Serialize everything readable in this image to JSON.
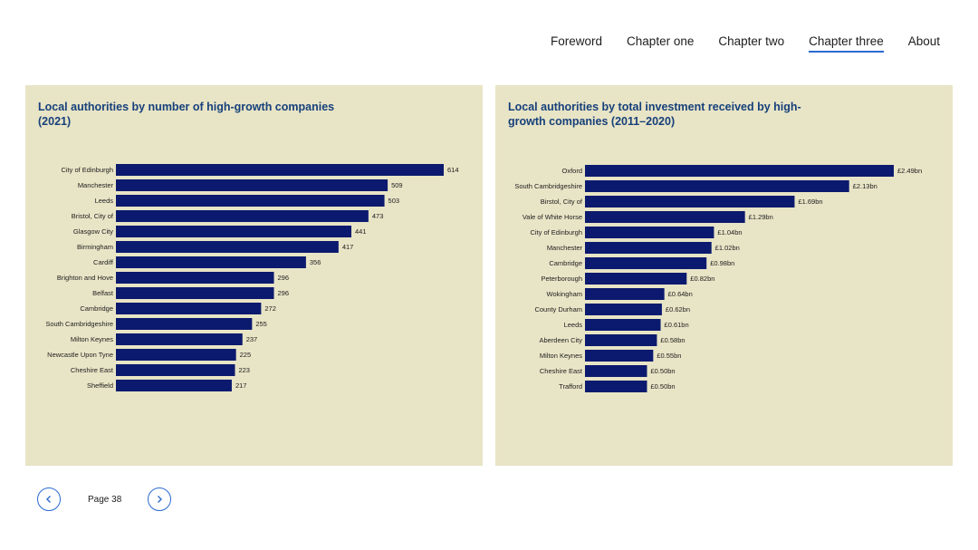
{
  "nav": {
    "items": [
      "Foreword",
      "Chapter one",
      "Chapter two",
      "Chapter three",
      "About"
    ],
    "active_index": 3
  },
  "colors": {
    "bar": "#0b1a6e",
    "panel": "#e8e4c6",
    "title": "#16407a",
    "accent": "#2a6ad1"
  },
  "charts": {
    "left": {
      "title": "Local authorities by number of high-growth companies (2021)"
    },
    "right": {
      "title": "Local authorities by total investment received by high-growth companies (2011–2020)"
    }
  },
  "chart_data": [
    {
      "type": "bar",
      "orientation": "horizontal",
      "title": "Local authorities by number of high-growth companies (2021)",
      "categories": [
        "City of Edinburgh",
        "Manchester",
        "Leeds",
        "Bristol, City of",
        "Glasgow City",
        "Birmingham",
        "Cardiff",
        "Brighton and Hove",
        "Belfast",
        "Cambridge",
        "South Cambridgeshire",
        "Milton Keynes",
        "Newcastle Upon Tyne",
        "Cheshire East",
        "Sheffield"
      ],
      "values": [
        614,
        509,
        503,
        473,
        441,
        417,
        356,
        296,
        296,
        272,
        255,
        237,
        225,
        223,
        217
      ],
      "labels": [
        "614",
        "509",
        "503",
        "473",
        "441",
        "417",
        "356",
        "296",
        "296",
        "272",
        "255",
        "237",
        "225",
        "223",
        "217"
      ]
    },
    {
      "type": "bar",
      "orientation": "horizontal",
      "title": "Local authorities by total investment received by high-growth companies (2011–2020)",
      "categories": [
        "Oxford",
        "South Cambridgeshire",
        "Birstol, City of",
        "Vale of White Horse",
        "City of Edinburgh",
        "Manchester",
        "Cambridge",
        "Peterborough",
        "Wokingham",
        "County Durham",
        "Leeds",
        "Aberdeen City",
        "Milton Keynes",
        "Cheshire East",
        "Trafford"
      ],
      "values": [
        2.49,
        2.13,
        1.69,
        1.29,
        1.04,
        1.02,
        0.98,
        0.82,
        0.64,
        0.62,
        0.61,
        0.58,
        0.55,
        0.5,
        0.5
      ],
      "labels": [
        "£2.49bn",
        "£2.13bn",
        "£1.69bn",
        "£1.29bn",
        "£1.04bn",
        "£1.02bn",
        "£0.98bn",
        "£0.82bn",
        "£0.64bn",
        "£0.62bn",
        "£0.61bn",
        "£0.58bn",
        "£0.55bn",
        "£0.50bn",
        "£0.50bn"
      ]
    }
  ],
  "pager": {
    "label": "Page 38",
    "prev_icon": "chevron-left-icon",
    "next_icon": "chevron-right-icon"
  }
}
